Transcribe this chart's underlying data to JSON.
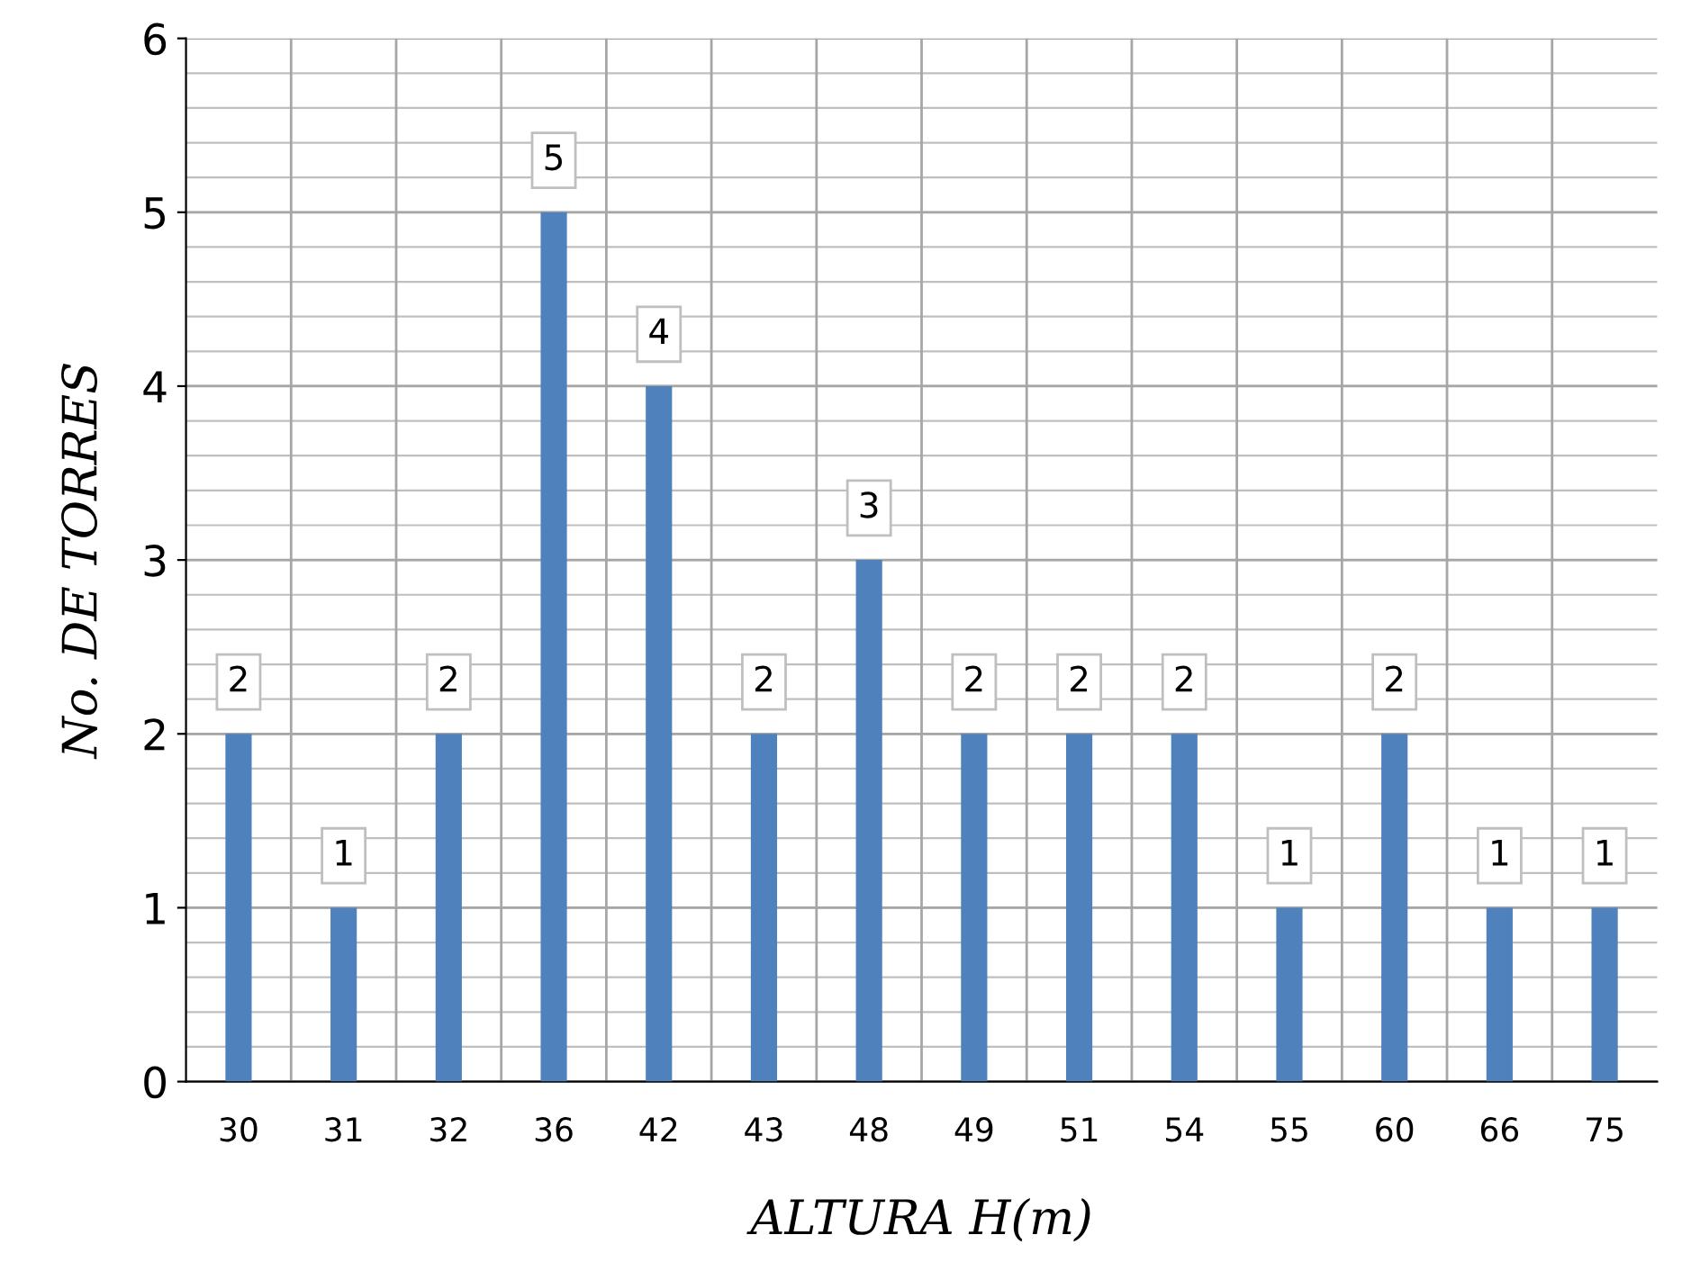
{
  "chart_data": {
    "type": "bar",
    "xlabel": "ALTURA H(m)",
    "ylabel": "No. DE TORRES",
    "categories": [
      "30",
      "31",
      "32",
      "36",
      "42",
      "43",
      "48",
      "49",
      "51",
      "54",
      "55",
      "60",
      "66",
      "75"
    ],
    "values": [
      2,
      1,
      2,
      5,
      4,
      2,
      3,
      2,
      2,
      2,
      1,
      2,
      1,
      1
    ],
    "color": "#4f81bd",
    "ylim": [
      0,
      6
    ],
    "yticks": [
      0,
      1,
      2,
      3,
      4,
      5,
      6
    ],
    "grid": true,
    "data_labels": true
  }
}
